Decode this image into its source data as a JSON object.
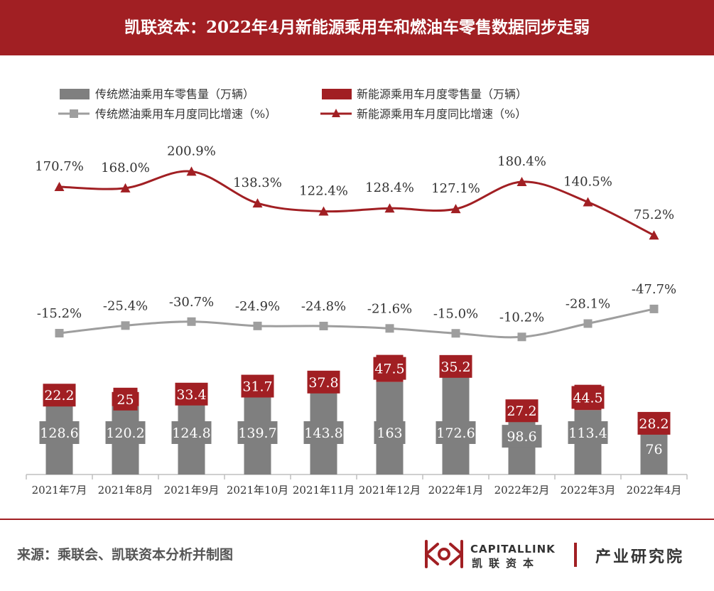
{
  "header": {
    "title": "凯联资本：2022年4月新能源乘用车和燃油车零售数据同步走弱"
  },
  "footer": {
    "source": "来源：乘联会、凯联资本分析并制图",
    "logo_en": "CAPITALLINK",
    "logo_cn": "凯联资本",
    "institute": "产业研究院"
  },
  "colors": {
    "brand_red": "#a11f23",
    "gray": "#7f7f7f",
    "gray_line": "#9e9e9e"
  },
  "chart_data": {
    "type": "bar",
    "stacked": true,
    "legend_position": "top",
    "grid": false,
    "categories": [
      "2021年7月",
      "2021年8月",
      "2021年9月",
      "2021年10月",
      "2021年11月",
      "2021年12月",
      "2022年1月",
      "2022年2月",
      "2022年3月",
      "2022年4月"
    ],
    "series": [
      {
        "name": "传统燃油乘用车零售量（万辆）",
        "type": "bar",
        "values": [
          128.6,
          120.2,
          124.8,
          139.7,
          143.8,
          163,
          172.6,
          98.6,
          113.4,
          76
        ]
      },
      {
        "name": "新能源乘用车月度零售量（万辆）",
        "type": "bar",
        "values": [
          22.2,
          25,
          33.4,
          31.7,
          37.8,
          47.5,
          35.2,
          27.2,
          44.5,
          28.2
        ]
      },
      {
        "name": "传统燃油乘用车月度同比增速（%）",
        "type": "line",
        "values": [
          -15.2,
          -25.4,
          -30.7,
          -24.9,
          -24.8,
          -21.6,
          -15.0,
          -10.2,
          -28.1,
          -47.7
        ],
        "labels": [
          "-15.2%",
          "-25.4%",
          "-30.7%",
          "-24.9%",
          "-24.8%",
          "-21.6%",
          "-15.0%",
          "-10.2%",
          "-28.1%",
          "-47.7%"
        ]
      },
      {
        "name": "新能源乘用车月度同比增速（%）",
        "type": "line",
        "values": [
          170.7,
          168.0,
          200.9,
          138.3,
          122.4,
          128.4,
          127.1,
          180.4,
          140.5,
          75.2
        ],
        "labels": [
          "170.7%",
          "168.0%",
          "200.9%",
          "138.3%",
          "122.4%",
          "128.4%",
          "127.1%",
          "180.4%",
          "140.5%",
          "75.2%"
        ]
      }
    ],
    "bar_labels": {
      "gray": [
        "128.6",
        "120.2",
        "124.8",
        "139.7",
        "143.8",
        "163",
        "172.6",
        "98.6",
        "113.4",
        "76"
      ],
      "red": [
        "22.2",
        "25",
        "33.4",
        "31.7",
        "37.8",
        "47.5",
        "35.2",
        "27.2",
        "44.5",
        "28.2"
      ]
    }
  }
}
